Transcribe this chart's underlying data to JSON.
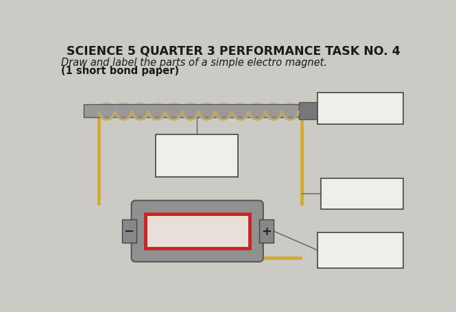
{
  "title": "SCIENCE 5 QUARTER 3 PERFORMANCE TASK NO. 4",
  "subtitle": "Draw and label the parts of a simple electro magnet.",
  "subtitle2": "(1 short bond paper)",
  "bg_color": "#cbcac5",
  "title_fontsize": 12.5,
  "subtitle_fontsize": 10.5,
  "wire_color": "#d4aa30",
  "wire_linewidth": 3.5,
  "battery_body_color": "#888888",
  "battery_inner_color": "#cc2222",
  "label_box_color": "#f0eeea",
  "label_box_edge": "#444444",
  "core_color": "#888888",
  "coil_color": "#b8a870"
}
